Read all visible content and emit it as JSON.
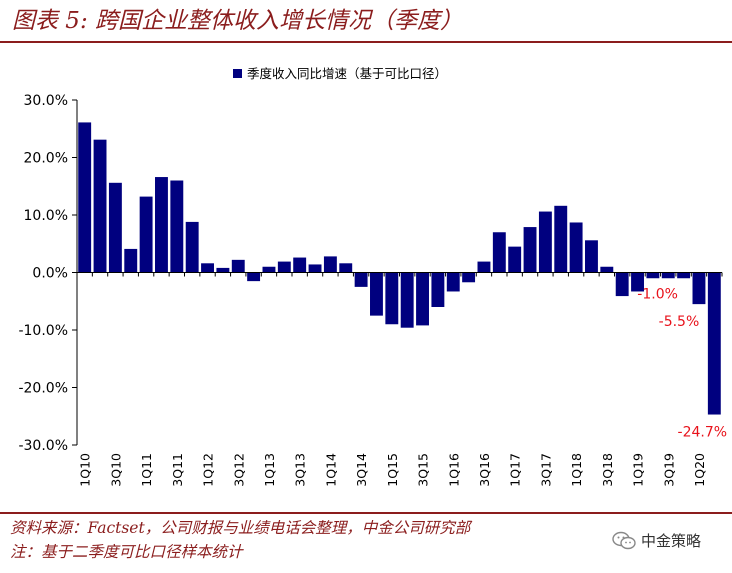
{
  "title": "图表 5: 跨国企业整体收入增长情况（季度）",
  "source": "资料来源：Factset，公司财报与业绩电话会整理，中金公司研究部",
  "footnote": "注：基于二季度可比口径样本统计",
  "brand": {
    "name": "中金策略",
    "icon": "wechat-icon"
  },
  "colors": {
    "bar": "#00007f",
    "accent": "#8b1d1d",
    "annotation": "#e8121b"
  },
  "chart_data": {
    "type": "bar",
    "legend": {
      "label": "季度收入同比增速（基于可比口径）",
      "placement": "top-center"
    },
    "ylim": [
      -30,
      30
    ],
    "yticks": [
      "30.0%",
      "20.0%",
      "10.0%",
      "0.0%",
      "-10.0%",
      "-20.0%",
      "-30.0%"
    ],
    "xlabels_shown": [
      "1Q10",
      "3Q10",
      "1Q11",
      "3Q11",
      "1Q12",
      "3Q12",
      "1Q13",
      "3Q13",
      "1Q14",
      "3Q14",
      "1Q15",
      "3Q15",
      "1Q16",
      "3Q16",
      "1Q17",
      "3Q17",
      "1Q18",
      "3Q18",
      "1Q19",
      "3Q19",
      "1Q20"
    ],
    "categories": [
      "1Q10",
      "2Q10",
      "3Q10",
      "4Q10",
      "1Q11",
      "2Q11",
      "3Q11",
      "4Q11",
      "1Q12",
      "2Q12",
      "3Q12",
      "4Q12",
      "1Q13",
      "2Q13",
      "3Q13",
      "4Q13",
      "1Q14",
      "2Q14",
      "3Q14",
      "4Q14",
      "1Q15",
      "2Q15",
      "3Q15",
      "4Q15",
      "1Q16",
      "2Q16",
      "3Q16",
      "4Q16",
      "1Q17",
      "2Q17",
      "3Q17",
      "4Q17",
      "1Q18",
      "2Q18",
      "3Q18",
      "4Q18",
      "1Q19",
      "2Q19",
      "3Q19",
      "4Q19",
      "1Q20",
      "2Q20"
    ],
    "series": [
      {
        "name": "季度收入同比增速（基于可比口径）",
        "values": [
          26.1,
          23.1,
          15.6,
          4.1,
          13.2,
          16.6,
          16.0,
          8.8,
          1.6,
          0.8,
          2.2,
          -1.5,
          1.0,
          1.9,
          2.6,
          1.4,
          2.8,
          1.6,
          -2.5,
          -7.5,
          -9.0,
          -9.6,
          -9.2,
          -6.0,
          -3.3,
          -1.7,
          1.9,
          7.0,
          4.5,
          7.9,
          10.6,
          11.6,
          8.7,
          5.6,
          1.0,
          -4.1,
          -3.3,
          -1.0,
          -1.0,
          -1.0,
          -5.5,
          -24.7
        ]
      }
    ],
    "annotations": [
      {
        "category": "4Q19",
        "text": "-1.0%"
      },
      {
        "category": "1Q20",
        "text": "-5.5%"
      },
      {
        "category": "2Q20",
        "text": "-24.7%"
      }
    ]
  }
}
